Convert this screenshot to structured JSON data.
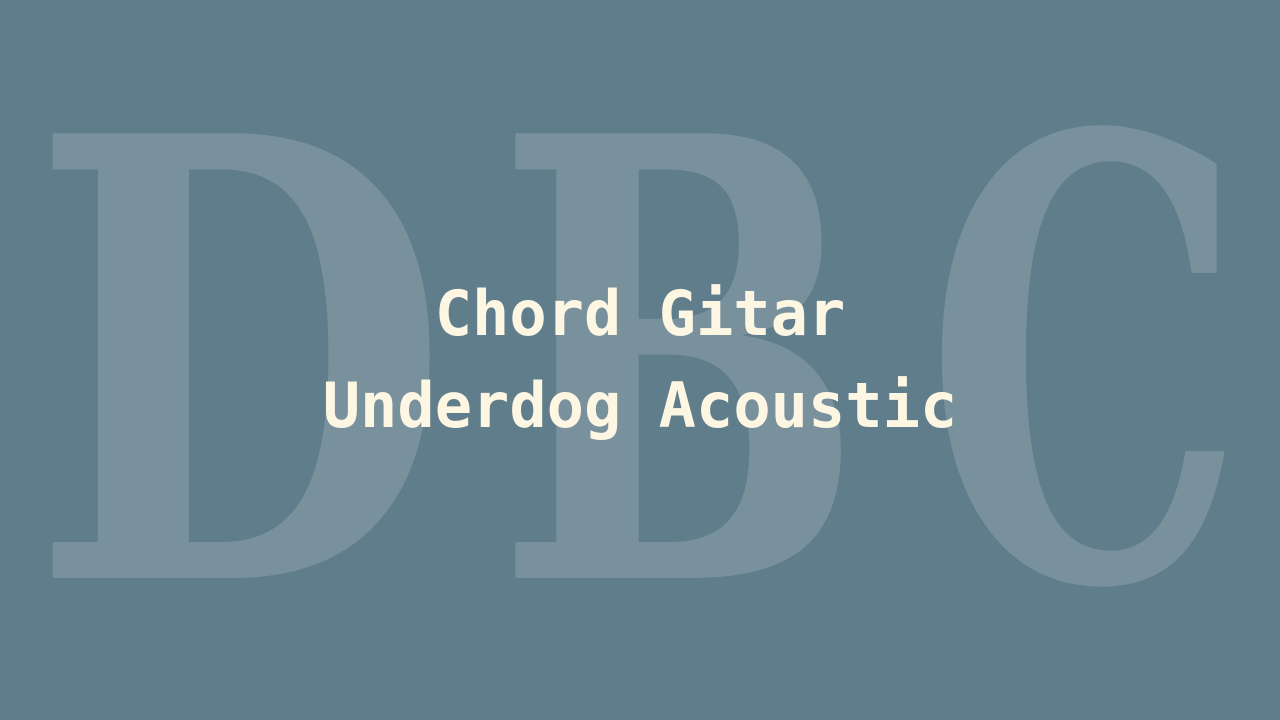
{
  "watermark": {
    "text": "DBC",
    "letters": [
      "D",
      "B",
      "C"
    ]
  },
  "title": {
    "line1": "Chord Gitar",
    "line2": "Underdog Acoustic"
  },
  "colors": {
    "background": "#607d8b",
    "title": "#fdf6e3",
    "watermark": "#ffffff"
  }
}
